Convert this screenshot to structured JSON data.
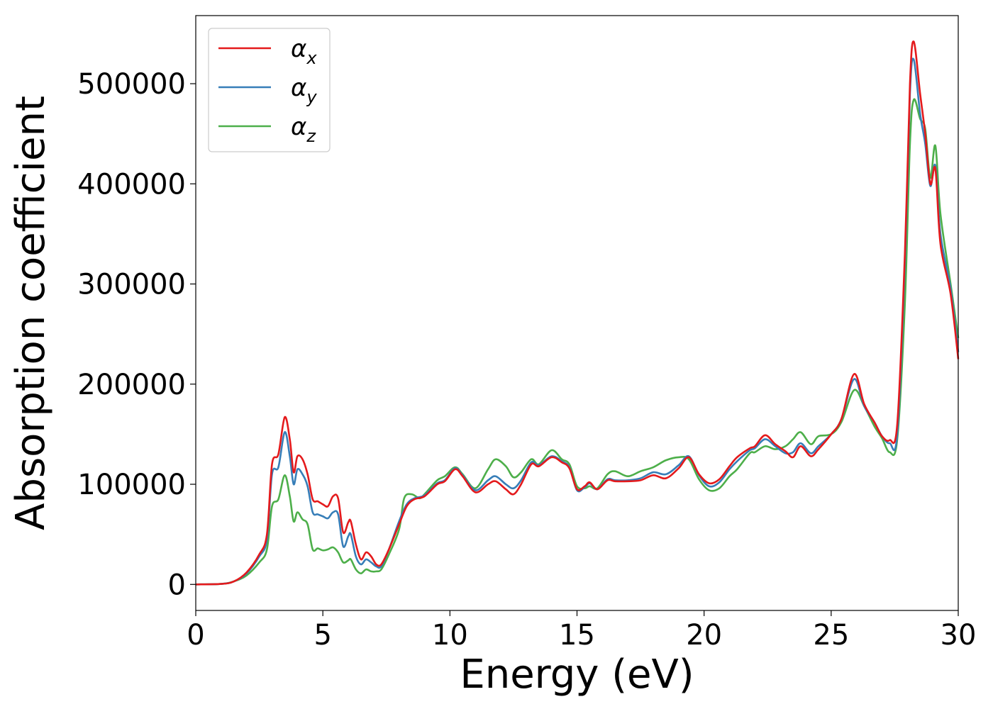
{
  "chart_data": {
    "type": "line",
    "title": "",
    "xlabel": "Energy (eV)",
    "ylabel": "Absorption coefficient",
    "xlim": [
      0,
      30
    ],
    "ylim": [
      -26000,
      568000
    ],
    "xticks": [
      0,
      5,
      10,
      15,
      20,
      25,
      30
    ],
    "yticks": [
      0,
      100000,
      200000,
      300000,
      400000,
      500000
    ],
    "x_tick_labels": [
      "0",
      "5",
      "10",
      "15",
      "20",
      "25",
      "30"
    ],
    "y_tick_labels": [
      "0",
      "100000",
      "200000",
      "300000",
      "400000",
      "500000"
    ],
    "grid": false,
    "legend_position": "top-left",
    "series": [
      {
        "name": "αx",
        "legend_base": "α",
        "legend_sub": "x",
        "color": "#e41a1c",
        "points": [
          [
            0,
            0
          ],
          [
            1,
            500
          ],
          [
            1.5,
            3000
          ],
          [
            2,
            12000
          ],
          [
            2.5,
            30000
          ],
          [
            2.8,
            50000
          ],
          [
            3.0,
            120000
          ],
          [
            3.25,
            130000
          ],
          [
            3.5,
            167000
          ],
          [
            3.7,
            145000
          ],
          [
            3.85,
            112000
          ],
          [
            4.0,
            128000
          ],
          [
            4.2,
            125000
          ],
          [
            4.4,
            110000
          ],
          [
            4.6,
            85000
          ],
          [
            4.8,
            83000
          ],
          [
            5.0,
            80000
          ],
          [
            5.2,
            78000
          ],
          [
            5.4,
            88000
          ],
          [
            5.6,
            86000
          ],
          [
            5.8,
            52000
          ],
          [
            6.0,
            62000
          ],
          [
            6.1,
            63000
          ],
          [
            6.3,
            40000
          ],
          [
            6.5,
            25000
          ],
          [
            6.7,
            32000
          ],
          [
            6.9,
            28000
          ],
          [
            7.1,
            20000
          ],
          [
            7.3,
            20000
          ],
          [
            7.6,
            35000
          ],
          [
            8.0,
            60000
          ],
          [
            8.3,
            78000
          ],
          [
            8.6,
            85000
          ],
          [
            9.0,
            88000
          ],
          [
            9.5,
            100000
          ],
          [
            9.8,
            103000
          ],
          [
            10.2,
            115000
          ],
          [
            10.5,
            108000
          ],
          [
            11.0,
            92000
          ],
          [
            11.5,
            100000
          ],
          [
            11.8,
            103000
          ],
          [
            12.2,
            95000
          ],
          [
            12.5,
            90000
          ],
          [
            12.8,
            100000
          ],
          [
            13.2,
            120000
          ],
          [
            13.5,
            118000
          ],
          [
            14.0,
            127000
          ],
          [
            14.4,
            122000
          ],
          [
            14.7,
            116000
          ],
          [
            15.0,
            95000
          ],
          [
            15.3,
            98000
          ],
          [
            15.5,
            102000
          ],
          [
            15.8,
            95000
          ],
          [
            16.2,
            104000
          ],
          [
            16.5,
            103000
          ],
          [
            17.0,
            103000
          ],
          [
            17.5,
            104000
          ],
          [
            18.0,
            109000
          ],
          [
            18.5,
            106000
          ],
          [
            19.0,
            116000
          ],
          [
            19.4,
            127000
          ],
          [
            19.8,
            110000
          ],
          [
            20.2,
            101000
          ],
          [
            20.6,
            105000
          ],
          [
            21.0,
            118000
          ],
          [
            21.3,
            127000
          ],
          [
            21.8,
            136000
          ],
          [
            22.0,
            138000
          ],
          [
            22.4,
            149000
          ],
          [
            22.8,
            140000
          ],
          [
            23.2,
            133000
          ],
          [
            23.5,
            127000
          ],
          [
            23.8,
            138000
          ],
          [
            24.2,
            128000
          ],
          [
            24.5,
            135000
          ],
          [
            25.0,
            150000
          ],
          [
            25.4,
            165000
          ],
          [
            25.9,
            210000
          ],
          [
            26.3,
            180000
          ],
          [
            26.7,
            162000
          ],
          [
            27.0,
            148000
          ],
          [
            27.3,
            144000
          ],
          [
            27.6,
            160000
          ],
          [
            27.9,
            330000
          ],
          [
            28.1,
            500000
          ],
          [
            28.25,
            542000
          ],
          [
            28.5,
            490000
          ],
          [
            28.7,
            450000
          ],
          [
            28.9,
            400000
          ],
          [
            29.1,
            415000
          ],
          [
            29.3,
            340000
          ],
          [
            29.7,
            290000
          ],
          [
            30,
            225000
          ]
        ]
      },
      {
        "name": "αy",
        "legend_base": "α",
        "legend_sub": "y",
        "color": "#377eb8",
        "points": [
          [
            0,
            0
          ],
          [
            1,
            500
          ],
          [
            1.5,
            3000
          ],
          [
            2,
            11000
          ],
          [
            2.5,
            28000
          ],
          [
            2.8,
            45000
          ],
          [
            3.0,
            110000
          ],
          [
            3.25,
            117000
          ],
          [
            3.5,
            152000
          ],
          [
            3.7,
            128000
          ],
          [
            3.85,
            100000
          ],
          [
            4.0,
            115000
          ],
          [
            4.2,
            110000
          ],
          [
            4.4,
            98000
          ],
          [
            4.6,
            72000
          ],
          [
            4.8,
            70000
          ],
          [
            5.0,
            68000
          ],
          [
            5.2,
            66000
          ],
          [
            5.4,
            72000
          ],
          [
            5.6,
            70000
          ],
          [
            5.8,
            38000
          ],
          [
            6.0,
            48000
          ],
          [
            6.1,
            50000
          ],
          [
            6.3,
            28000
          ],
          [
            6.5,
            20000
          ],
          [
            6.7,
            25000
          ],
          [
            6.9,
            22000
          ],
          [
            7.1,
            18000
          ],
          [
            7.3,
            18000
          ],
          [
            7.6,
            35000
          ],
          [
            8.0,
            63000
          ],
          [
            8.3,
            80000
          ],
          [
            8.6,
            86000
          ],
          [
            9.0,
            89000
          ],
          [
            9.5,
            101000
          ],
          [
            9.8,
            104000
          ],
          [
            10.2,
            116000
          ],
          [
            10.5,
            109000
          ],
          [
            11.0,
            94000
          ],
          [
            11.5,
            104000
          ],
          [
            11.8,
            108000
          ],
          [
            12.2,
            100000
          ],
          [
            12.5,
            96000
          ],
          [
            12.8,
            104000
          ],
          [
            13.2,
            122000
          ],
          [
            13.5,
            119000
          ],
          [
            14.0,
            128000
          ],
          [
            14.4,
            123000
          ],
          [
            14.7,
            117000
          ],
          [
            15.0,
            94000
          ],
          [
            15.3,
            97000
          ],
          [
            15.5,
            101000
          ],
          [
            15.8,
            95000
          ],
          [
            16.2,
            105000
          ],
          [
            16.5,
            104000
          ],
          [
            17.0,
            104000
          ],
          [
            17.5,
            106000
          ],
          [
            18.0,
            112000
          ],
          [
            18.5,
            110000
          ],
          [
            19.0,
            119000
          ],
          [
            19.4,
            128000
          ],
          [
            19.8,
            109000
          ],
          [
            20.2,
            98000
          ],
          [
            20.6,
            102000
          ],
          [
            21.0,
            115000
          ],
          [
            21.3,
            123000
          ],
          [
            21.8,
            134000
          ],
          [
            22.0,
            136000
          ],
          [
            22.4,
            145000
          ],
          [
            22.8,
            138000
          ],
          [
            23.2,
            131000
          ],
          [
            23.5,
            132000
          ],
          [
            23.8,
            141000
          ],
          [
            24.2,
            131000
          ],
          [
            24.5,
            138000
          ],
          [
            25.0,
            150000
          ],
          [
            25.4,
            165000
          ],
          [
            25.9,
            205000
          ],
          [
            26.3,
            178000
          ],
          [
            26.7,
            162000
          ],
          [
            27.0,
            148000
          ],
          [
            27.3,
            141000
          ],
          [
            27.6,
            150000
          ],
          [
            27.9,
            320000
          ],
          [
            28.1,
            490000
          ],
          [
            28.25,
            524000
          ],
          [
            28.5,
            470000
          ],
          [
            28.7,
            440000
          ],
          [
            28.9,
            398000
          ],
          [
            29.1,
            418000
          ],
          [
            29.3,
            350000
          ],
          [
            29.7,
            295000
          ],
          [
            30,
            232000
          ]
        ]
      },
      {
        "name": "αz",
        "legend_base": "α",
        "legend_sub": "z",
        "color": "#4daf4a",
        "points": [
          [
            0,
            0
          ],
          [
            1,
            500
          ],
          [
            1.5,
            3000
          ],
          [
            2,
            9000
          ],
          [
            2.5,
            22000
          ],
          [
            2.8,
            35000
          ],
          [
            3.0,
            78000
          ],
          [
            3.25,
            85000
          ],
          [
            3.5,
            109000
          ],
          [
            3.7,
            88000
          ],
          [
            3.85,
            63000
          ],
          [
            4.0,
            72000
          ],
          [
            4.2,
            65000
          ],
          [
            4.4,
            60000
          ],
          [
            4.6,
            35000
          ],
          [
            4.8,
            36000
          ],
          [
            5.0,
            34000
          ],
          [
            5.2,
            35000
          ],
          [
            5.4,
            37000
          ],
          [
            5.6,
            32000
          ],
          [
            5.8,
            22000
          ],
          [
            6.0,
            24000
          ],
          [
            6.1,
            25000
          ],
          [
            6.3,
            15000
          ],
          [
            6.5,
            11000
          ],
          [
            6.7,
            15000
          ],
          [
            6.9,
            13000
          ],
          [
            7.1,
            13000
          ],
          [
            7.3,
            15000
          ],
          [
            7.6,
            30000
          ],
          [
            8.0,
            55000
          ],
          [
            8.2,
            86000
          ],
          [
            8.5,
            90000
          ],
          [
            8.8,
            86000
          ],
          [
            9.0,
            90000
          ],
          [
            9.5,
            104000
          ],
          [
            9.8,
            108000
          ],
          [
            10.2,
            117000
          ],
          [
            10.5,
            110000
          ],
          [
            11.0,
            96000
          ],
          [
            11.5,
            115000
          ],
          [
            11.8,
            125000
          ],
          [
            12.2,
            118000
          ],
          [
            12.5,
            107000
          ],
          [
            12.8,
            112000
          ],
          [
            13.2,
            125000
          ],
          [
            13.5,
            120000
          ],
          [
            14.0,
            134000
          ],
          [
            14.4,
            125000
          ],
          [
            14.7,
            120000
          ],
          [
            15.0,
            98000
          ],
          [
            15.3,
            96000
          ],
          [
            15.5,
            98000
          ],
          [
            15.8,
            96000
          ],
          [
            16.2,
            110000
          ],
          [
            16.5,
            113000
          ],
          [
            17.0,
            108000
          ],
          [
            17.5,
            113000
          ],
          [
            18.0,
            117000
          ],
          [
            18.5,
            124000
          ],
          [
            19.0,
            127000
          ],
          [
            19.4,
            125000
          ],
          [
            19.8,
            105000
          ],
          [
            20.2,
            94000
          ],
          [
            20.6,
            96000
          ],
          [
            21.0,
            108000
          ],
          [
            21.3,
            115000
          ],
          [
            21.8,
            131000
          ],
          [
            22.0,
            132000
          ],
          [
            22.4,
            138000
          ],
          [
            22.8,
            135000
          ],
          [
            23.2,
            138000
          ],
          [
            23.5,
            145000
          ],
          [
            23.8,
            152000
          ],
          [
            24.2,
            140000
          ],
          [
            24.5,
            148000
          ],
          [
            25.0,
            150000
          ],
          [
            25.4,
            162000
          ],
          [
            25.9,
            194000
          ],
          [
            26.3,
            178000
          ],
          [
            26.7,
            158000
          ],
          [
            27.0,
            146000
          ],
          [
            27.3,
            132000
          ],
          [
            27.6,
            145000
          ],
          [
            27.9,
            280000
          ],
          [
            28.1,
            440000
          ],
          [
            28.25,
            484000
          ],
          [
            28.5,
            465000
          ],
          [
            28.7,
            455000
          ],
          [
            28.9,
            406000
          ],
          [
            29.1,
            438000
          ],
          [
            29.3,
            370000
          ],
          [
            29.7,
            300000
          ],
          [
            30,
            246000
          ]
        ]
      }
    ]
  }
}
